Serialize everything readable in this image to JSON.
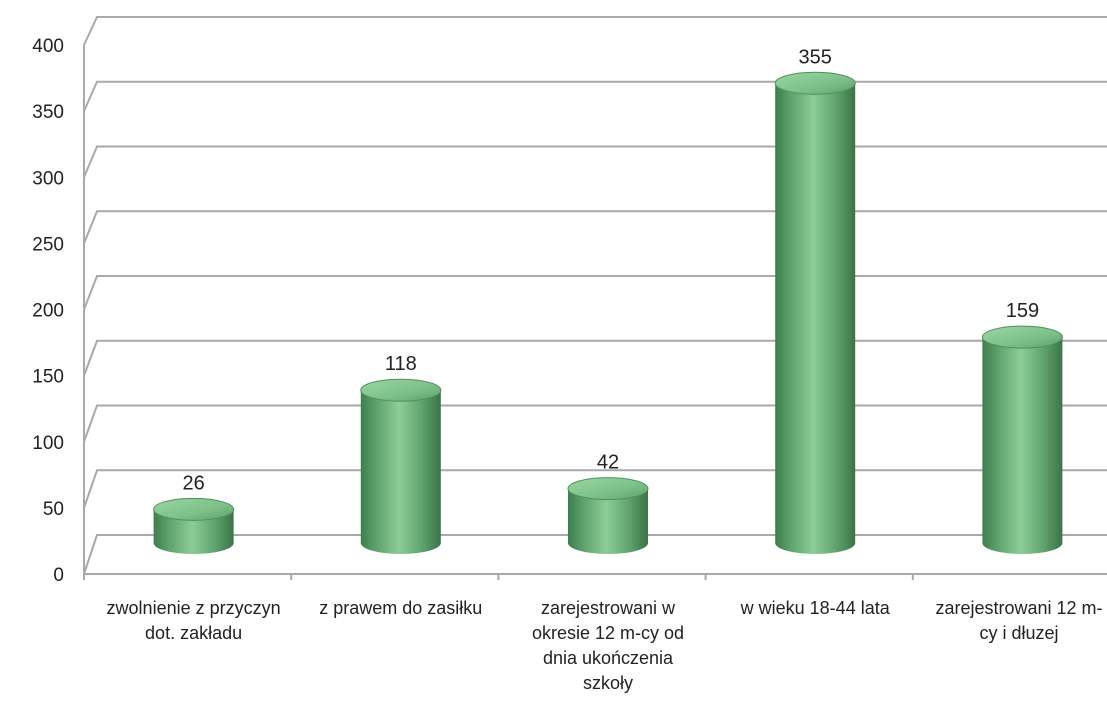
{
  "chart_data": {
    "type": "bar",
    "categories": [
      "zwolnienie z przyczyn dot. zakładu",
      "z prawem do zasiłku",
      "zarejestrowani w okresie 12 m-cy od dnia ukończenia szkoły",
      "w wieku 18-44 lata",
      "zarejestrowani 12 m-cy i dłuzej"
    ],
    "values": [
      26,
      118,
      42,
      355,
      159
    ],
    "ylim": [
      0,
      400
    ],
    "yticks": [
      0,
      50,
      100,
      150,
      200,
      250,
      300,
      350,
      400
    ],
    "yticks_text": [
      "0",
      "50",
      "100",
      "150",
      "200",
      "250",
      "300",
      "350",
      "400"
    ],
    "values_text": [
      "26",
      "118",
      "42",
      "355",
      "159"
    ],
    "grid": true,
    "legend": "none",
    "bar_shape": "3d-cylinder",
    "colors": {
      "bar": "#6db57a",
      "bar_dark": "#3f7d4d",
      "grid": "#a9a9a9",
      "text": "#222222"
    }
  }
}
